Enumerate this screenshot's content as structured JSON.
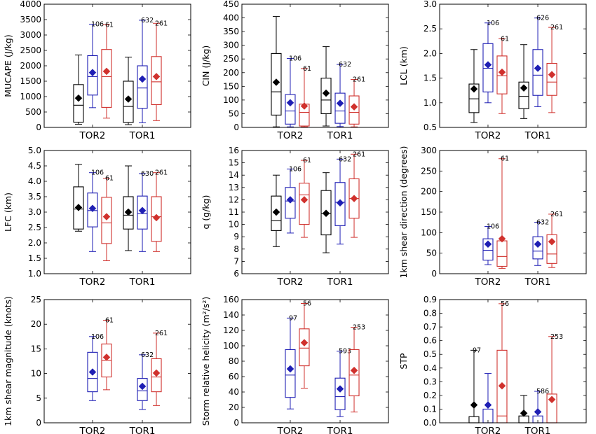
{
  "colors": {
    "black": "#000000",
    "blue": "#1f1fb4",
    "red": "#d0312d"
  },
  "chart_data": [
    {
      "type": "box",
      "ylabel": "MUCAPE (J/kg)",
      "ylim": [
        0,
        4000
      ],
      "yticks": [
        "0",
        "500",
        "1000",
        "1500",
        "2000",
        "2500",
        "3000",
        "3500",
        "4000"
      ],
      "categories": [
        "TOR2",
        "TOR1"
      ],
      "boxes": [
        {
          "category": "TOR2",
          "series": "black",
          "min": 100,
          "q1": 170,
          "median": 720,
          "q3": 1390,
          "max": 2350,
          "mean": 950,
          "n": ""
        },
        {
          "category": "TOR2",
          "series": "blue",
          "min": 640,
          "q1": 1050,
          "median": 1650,
          "q3": 2330,
          "max": 3350,
          "mean": 1780,
          "n": "106"
        },
        {
          "category": "TOR2",
          "series": "red",
          "min": 300,
          "q1": 650,
          "median": 1650,
          "q3": 2530,
          "max": 3330,
          "mean": 1820,
          "n": "61"
        },
        {
          "category": "TOR1",
          "series": "black",
          "min": 90,
          "q1": 160,
          "median": 680,
          "q3": 1500,
          "max": 2280,
          "mean": 920,
          "n": ""
        },
        {
          "category": "TOR1",
          "series": "blue",
          "min": 150,
          "q1": 620,
          "median": 1280,
          "q3": 2000,
          "max": 3480,
          "mean": 1570,
          "n": "632"
        },
        {
          "category": "TOR1",
          "series": "red",
          "min": 220,
          "q1": 740,
          "median": 1480,
          "q3": 2300,
          "max": 3380,
          "mean": 1650,
          "n": "261"
        }
      ]
    },
    {
      "type": "box",
      "ylabel": "CIN (J/kg)",
      "ylim": [
        0,
        450
      ],
      "yticks": [
        "0",
        "50",
        "100",
        "150",
        "200",
        "250",
        "300",
        "350",
        "400",
        "450"
      ],
      "categories": [
        "TOR2",
        "TOR1"
      ],
      "boxes": [
        {
          "category": "TOR2",
          "series": "black",
          "min": 2,
          "q1": 45,
          "median": 130,
          "q3": 270,
          "max": 405,
          "mean": 165,
          "n": ""
        },
        {
          "category": "TOR2",
          "series": "blue",
          "min": 2,
          "q1": 12,
          "median": 60,
          "q3": 120,
          "max": 252,
          "mean": 90,
          "n": "106"
        },
        {
          "category": "TOR2",
          "series": "red",
          "min": 2,
          "q1": 5,
          "median": 55,
          "q3": 85,
          "max": 215,
          "mean": 78,
          "n": "61"
        },
        {
          "category": "TOR1",
          "series": "black",
          "min": 5,
          "q1": 50,
          "median": 100,
          "q3": 180,
          "max": 295,
          "mean": 125,
          "n": ""
        },
        {
          "category": "TOR1",
          "series": "blue",
          "min": 3,
          "q1": 15,
          "median": 60,
          "q3": 125,
          "max": 230,
          "mean": 88,
          "n": "632"
        },
        {
          "category": "TOR1",
          "series": "red",
          "min": 2,
          "q1": 12,
          "median": 55,
          "q3": 115,
          "max": 175,
          "mean": 75,
          "n": "261"
        }
      ]
    },
    {
      "type": "box",
      "ylabel": "LCL (km)",
      "ylim": [
        0.5,
        3.0
      ],
      "yticks": [
        "0.5",
        "1.0",
        "1.5",
        "2.0",
        "2.5",
        "3.0"
      ],
      "categories": [
        "TOR2",
        "TOR1"
      ],
      "boxes": [
        {
          "category": "TOR2",
          "series": "black",
          "min": 0.6,
          "q1": 0.8,
          "median": 1.08,
          "q3": 1.38,
          "max": 2.08,
          "mean": 1.28,
          "n": ""
        },
        {
          "category": "TOR2",
          "series": "blue",
          "min": 1.0,
          "q1": 1.22,
          "median": 1.7,
          "q3": 2.2,
          "max": 2.62,
          "mean": 1.77,
          "n": "106"
        },
        {
          "category": "TOR2",
          "series": "red",
          "min": 0.78,
          "q1": 1.18,
          "median": 1.55,
          "q3": 1.95,
          "max": 2.3,
          "mean": 1.62,
          "n": "61"
        },
        {
          "category": "TOR1",
          "series": "black",
          "min": 0.68,
          "q1": 0.88,
          "median": 1.13,
          "q3": 1.42,
          "max": 2.18,
          "mean": 1.3,
          "n": ""
        },
        {
          "category": "TOR1",
          "series": "blue",
          "min": 0.92,
          "q1": 1.15,
          "median": 1.56,
          "q3": 2.08,
          "max": 2.72,
          "mean": 1.7,
          "n": "626"
        },
        {
          "category": "TOR1",
          "series": "red",
          "min": 0.8,
          "q1": 1.15,
          "median": 1.42,
          "q3": 1.8,
          "max": 2.53,
          "mean": 1.57,
          "n": "261"
        }
      ]
    },
    {
      "type": "box",
      "ylabel": "LFC (km)",
      "ylim": [
        1.0,
        5.0
      ],
      "yticks": [
        "1.0",
        "1.5",
        "2.0",
        "2.5",
        "3.0",
        "3.5",
        "4.0",
        "4.5",
        "5.0"
      ],
      "categories": [
        "TOR2",
        "TOR1"
      ],
      "boxes": [
        {
          "category": "TOR2",
          "series": "black",
          "min": 2.38,
          "q1": 2.45,
          "median": 3.1,
          "q3": 3.82,
          "max": 4.55,
          "mean": 3.15,
          "n": ""
        },
        {
          "category": "TOR2",
          "series": "blue",
          "min": 1.72,
          "q1": 2.52,
          "median": 3.05,
          "q3": 3.62,
          "max": 4.28,
          "mean": 3.12,
          "n": "106"
        },
        {
          "category": "TOR2",
          "series": "red",
          "min": 1.42,
          "q1": 1.98,
          "median": 2.65,
          "q3": 3.48,
          "max": 4.1,
          "mean": 2.85,
          "n": "61"
        },
        {
          "category": "TOR1",
          "series": "black",
          "min": 1.75,
          "q1": 2.45,
          "median": 2.9,
          "q3": 3.5,
          "max": 4.5,
          "mean": 3.0,
          "n": ""
        },
        {
          "category": "TOR1",
          "series": "blue",
          "min": 1.72,
          "q1": 2.45,
          "median": 2.95,
          "q3": 3.52,
          "max": 4.25,
          "mean": 3.05,
          "n": "630"
        },
        {
          "category": "TOR1",
          "series": "red",
          "min": 1.72,
          "q1": 2.05,
          "median": 2.85,
          "q3": 3.5,
          "max": 4.28,
          "mean": 2.82,
          "n": "261"
        }
      ]
    },
    {
      "type": "box",
      "ylabel": "q (g/kg)",
      "ylim": [
        6,
        16
      ],
      "yticks": [
        "6",
        "7",
        "8",
        "9",
        "10",
        "11",
        "12",
        "13",
        "14",
        "15",
        "16"
      ],
      "categories": [
        "TOR2",
        "TOR1"
      ],
      "boxes": [
        {
          "category": "TOR2",
          "series": "black",
          "min": 8.2,
          "q1": 9.5,
          "median": 10.3,
          "q3": 12.3,
          "max": 14.0,
          "mean": 11.0,
          "n": ""
        },
        {
          "category": "TOR2",
          "series": "blue",
          "min": 9.3,
          "q1": 10.5,
          "median": 11.9,
          "q3": 13.0,
          "max": 14.5,
          "mean": 12.0,
          "n": "106"
        },
        {
          "category": "TOR2",
          "series": "red",
          "min": 8.95,
          "q1": 10.0,
          "median": 12.4,
          "q3": 13.35,
          "max": 15.2,
          "mean": 12.0,
          "n": "61"
        },
        {
          "category": "TOR1",
          "series": "black",
          "min": 7.7,
          "q1": 9.15,
          "median": 10.9,
          "q3": 12.75,
          "max": 14.2,
          "mean": 10.9,
          "n": ""
        },
        {
          "category": "TOR1",
          "series": "blue",
          "min": 8.4,
          "q1": 9.9,
          "median": 11.8,
          "q3": 13.4,
          "max": 15.3,
          "mean": 11.75,
          "n": "632"
        },
        {
          "category": "TOR1",
          "series": "red",
          "min": 8.95,
          "q1": 10.5,
          "median": 12.1,
          "q3": 13.7,
          "max": 15.7,
          "mean": 12.1,
          "n": "261"
        }
      ]
    },
    {
      "type": "box",
      "ylabel": "1km shear direction (degrees)",
      "ylim": [
        0,
        300
      ],
      "yticks": [
        "0",
        "50",
        "100",
        "150",
        "200",
        "250",
        "300"
      ],
      "categories": [
        "TOR2",
        "TOR1"
      ],
      "boxes": [
        {
          "category": "TOR2",
          "series": "blue",
          "min": 22,
          "q1": 33,
          "median": 57,
          "q3": 85,
          "max": 115,
          "mean": 72,
          "n": "106"
        },
        {
          "category": "TOR2",
          "series": "red",
          "min": 13,
          "q1": 18,
          "median": 42,
          "q3": 80,
          "max": 280,
          "mean": 85,
          "n": "61"
        },
        {
          "category": "TOR1",
          "series": "blue",
          "min": 20,
          "q1": 36,
          "median": 55,
          "q3": 90,
          "max": 125,
          "mean": 72,
          "n": "632"
        },
        {
          "category": "TOR1",
          "series": "red",
          "min": 15,
          "q1": 25,
          "median": 48,
          "q3": 95,
          "max": 145,
          "mean": 78,
          "n": "261"
        }
      ]
    },
    {
      "type": "box",
      "ylabel": "1km shear magnitude (knots)",
      "ylim": [
        0,
        25
      ],
      "yticks": [
        "0",
        "5",
        "10",
        "15",
        "20",
        "25"
      ],
      "categories": [
        "TOR2",
        "TOR1"
      ],
      "boxes": [
        {
          "category": "TOR2",
          "series": "blue",
          "min": 4.5,
          "q1": 6.3,
          "median": 9.0,
          "q3": 14.3,
          "max": 17.5,
          "mean": 10.3,
          "n": "106"
        },
        {
          "category": "TOR2",
          "series": "red",
          "min": 6.7,
          "q1": 9.3,
          "median": 12.7,
          "q3": 16.0,
          "max": 20.8,
          "mean": 13.3,
          "n": "61"
        },
        {
          "category": "TOR1",
          "series": "blue",
          "min": 2.7,
          "q1": 4.5,
          "median": 6.5,
          "q3": 9.0,
          "max": 13.8,
          "mean": 7.4,
          "n": "632"
        },
        {
          "category": "TOR1",
          "series": "red",
          "min": 3.5,
          "q1": 6.3,
          "median": 9.3,
          "q3": 13.0,
          "max": 18.2,
          "mean": 10.1,
          "n": "261"
        }
      ]
    },
    {
      "type": "box",
      "ylabel": "Storm relative helicity (m²/s²)",
      "ylim": [
        0,
        160
      ],
      "yticks": [
        "0",
        "20",
        "40",
        "60",
        "80",
        "100",
        "120",
        "140",
        "160"
      ],
      "categories": [
        "TOR2",
        "TOR1"
      ],
      "boxes": [
        {
          "category": "TOR2",
          "series": "blue",
          "min": 18,
          "q1": 33,
          "median": 62,
          "q3": 95,
          "max": 136,
          "mean": 70,
          "n": "97"
        },
        {
          "category": "TOR2",
          "series": "red",
          "min": 45,
          "q1": 74,
          "median": 97,
          "q3": 122,
          "max": 155,
          "mean": 104,
          "n": "56"
        },
        {
          "category": "TOR1",
          "series": "blue",
          "min": 8,
          "q1": 17,
          "median": 34,
          "q3": 58,
          "max": 93,
          "mean": 44,
          "n": "593"
        },
        {
          "category": "TOR1",
          "series": "red",
          "min": 14,
          "q1": 35,
          "median": 62,
          "q3": 95,
          "max": 124,
          "mean": 68,
          "n": "253"
        }
      ]
    },
    {
      "type": "box",
      "ylabel": "STP",
      "ylim": [
        0.0,
        0.9
      ],
      "yticks": [
        "0.0",
        "0.1",
        "0.2",
        "0.3",
        "0.4",
        "0.5",
        "0.6",
        "0.7",
        "0.8",
        "0.9"
      ],
      "categories": [
        "TOR2",
        "TOR1"
      ],
      "boxes": [
        {
          "category": "TOR2",
          "series": "black",
          "min": 0.0,
          "q1": 0.0,
          "median": 0.0,
          "q3": 0.045,
          "max": 0.53,
          "mean": 0.13,
          "n": "97"
        },
        {
          "category": "TOR2",
          "series": "blue",
          "min": 0.0,
          "q1": 0.0,
          "median": 0.0,
          "q3": 0.1,
          "max": 0.36,
          "mean": 0.13,
          "n": ""
        },
        {
          "category": "TOR2",
          "series": "red",
          "min": 0.0,
          "q1": 0.0,
          "median": 0.05,
          "q3": 0.53,
          "max": 0.87,
          "mean": 0.27,
          "n": "56"
        },
        {
          "category": "TOR1",
          "series": "black",
          "min": 0.0,
          "q1": 0.0,
          "median": 0.0,
          "q3": 0.05,
          "max": 0.2,
          "mean": 0.07,
          "n": ""
        },
        {
          "category": "TOR1",
          "series": "blue",
          "min": 0.0,
          "q1": 0.0,
          "median": 0.0,
          "q3": 0.05,
          "max": 0.23,
          "mean": 0.08,
          "n": "586"
        },
        {
          "category": "TOR1",
          "series": "red",
          "min": 0.0,
          "q1": 0.0,
          "median": 0.0,
          "q3": 0.21,
          "max": 0.63,
          "mean": 0.17,
          "n": "253"
        }
      ]
    }
  ]
}
